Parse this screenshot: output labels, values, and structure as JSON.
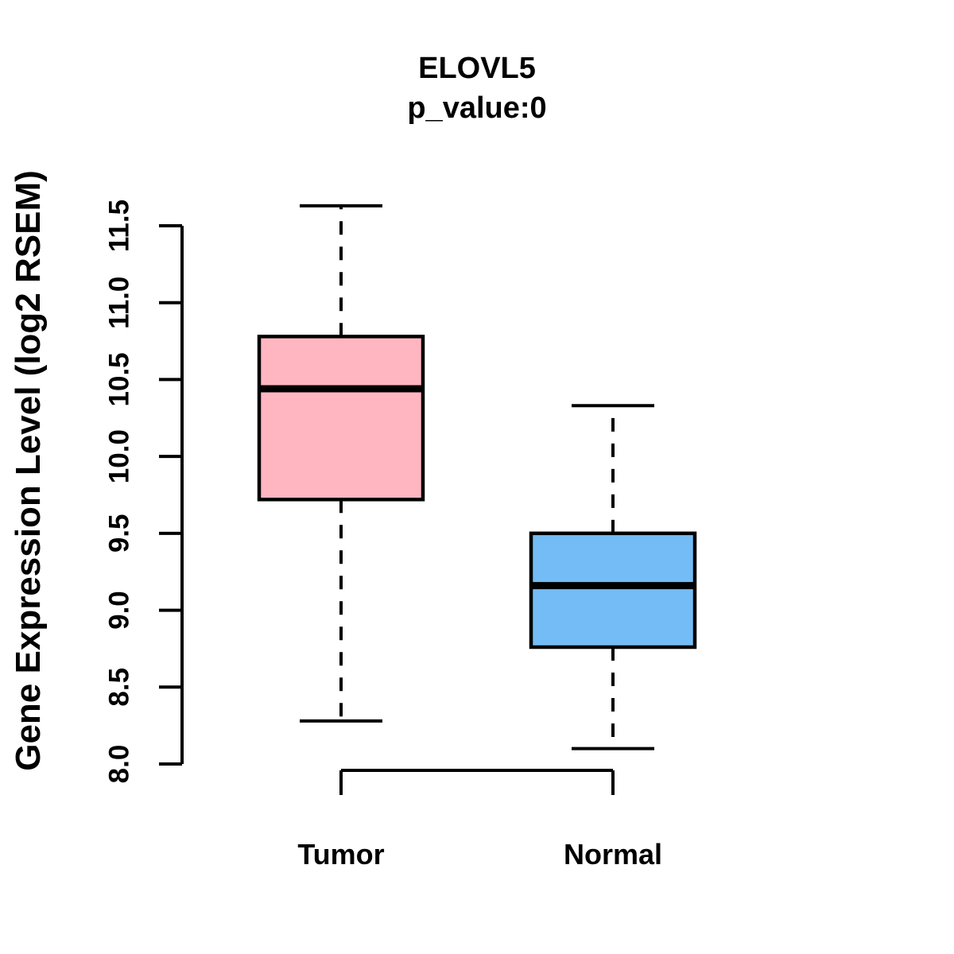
{
  "chart_data": {
    "type": "boxplot",
    "title": "ELOVL5",
    "subtitle": "p_value:0",
    "ylabel": "Gene Expression Level (log2 RSEM)",
    "xlabel": "",
    "categories": [
      "Tumor",
      "Normal"
    ],
    "ylim": [
      8.0,
      11.5
    ],
    "ytick_values": [
      8.0,
      8.5,
      9.0,
      9.5,
      10.0,
      10.5,
      11.0,
      11.5
    ],
    "ytick_labels": [
      "8.0",
      "8.5",
      "9.0",
      "9.5",
      "10.0",
      "10.5",
      "11.0",
      "11.5"
    ],
    "grid": "off",
    "legend": "none",
    "series": [
      {
        "name": "Tumor",
        "color": "#FFB6C1",
        "whisker_low": 8.28,
        "q1": 9.72,
        "median": 10.44,
        "q3": 10.78,
        "whisker_high": 11.63
      },
      {
        "name": "Normal",
        "color": "#74BCF5",
        "whisker_low": 8.1,
        "q1": 8.76,
        "median": 9.16,
        "q3": 9.5,
        "whisker_high": 10.33
      }
    ],
    "colors": {
      "tumor_box": "#FFB6C1",
      "normal_box": "#74BCF5",
      "line": "#000000",
      "background": "#FFFFFF"
    }
  }
}
